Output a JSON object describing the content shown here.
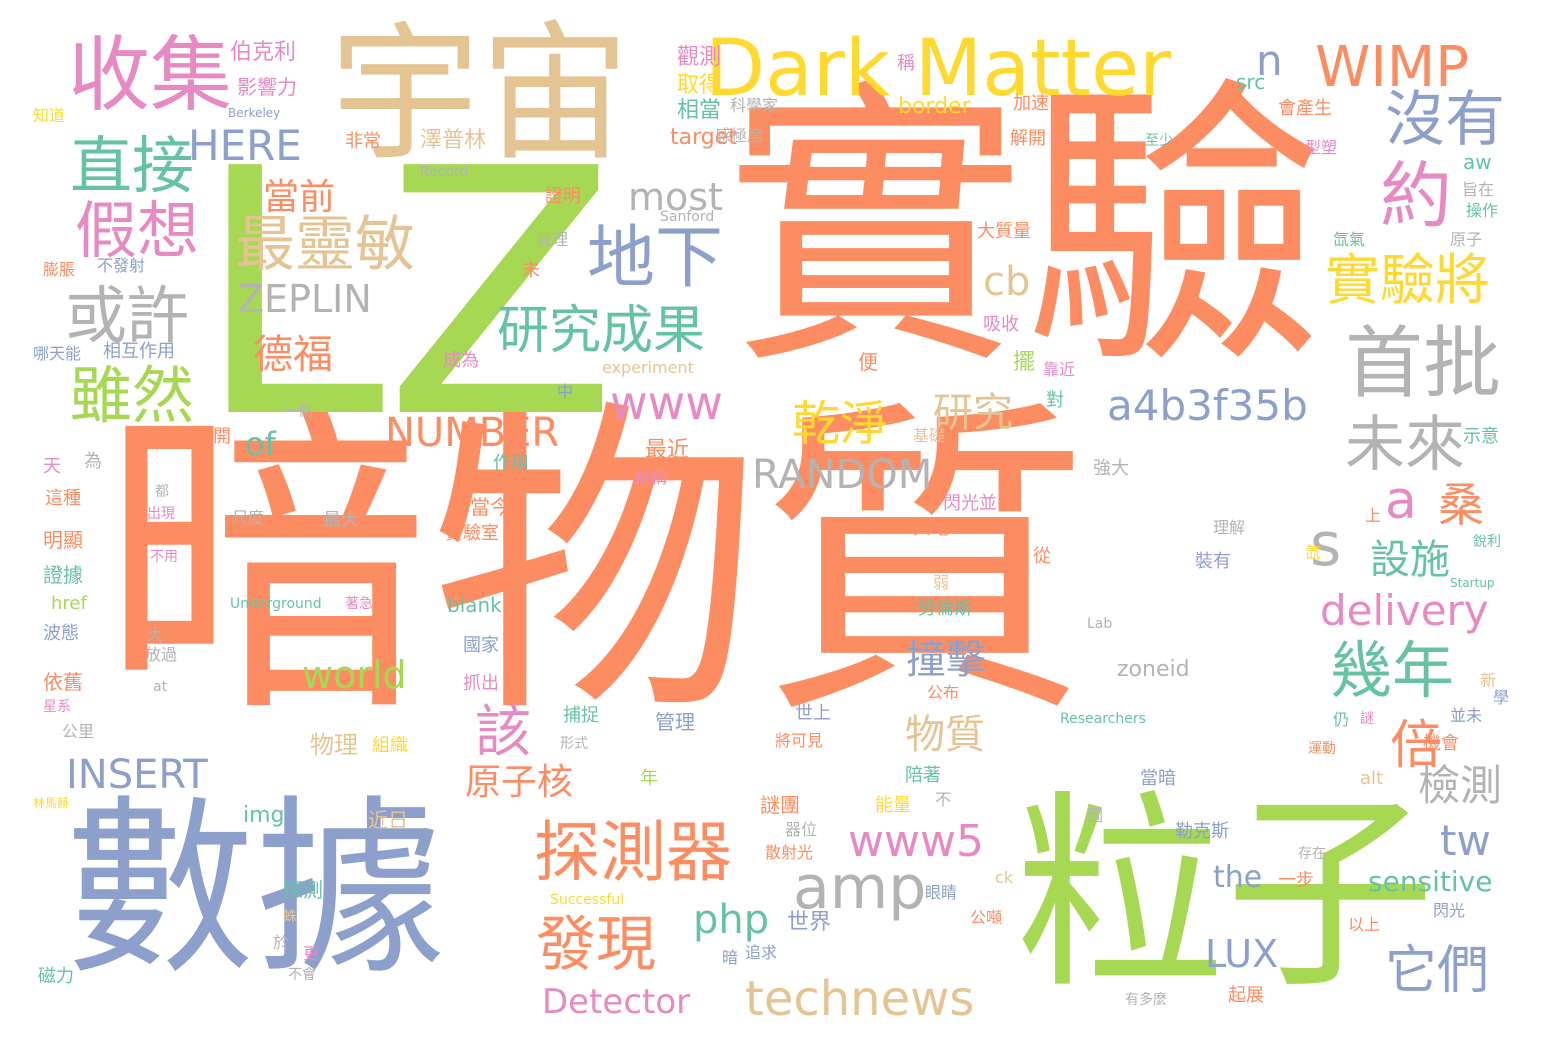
{
  "palette": {
    "orange": "#fc8d62",
    "blue": "#8da0cb",
    "green": "#a6d854",
    "tan": "#e5c494",
    "yellow": "#ffd92f",
    "teal": "#66c2a5",
    "pink": "#e78ac3",
    "gray": "#b3b3b3"
  },
  "words": [
    {
      "text": "暗物質",
      "color": "orange"
    },
    {
      "text": "實驗",
      "color": "orange"
    },
    {
      "text": "LZ",
      "color": "green"
    },
    {
      "text": "宇宙",
      "color": "tan"
    },
    {
      "text": "數據",
      "color": "blue"
    },
    {
      "text": "粒子",
      "color": "green"
    },
    {
      "text": "Dark Matter",
      "color": "yellow"
    },
    {
      "text": "收集",
      "color": "pink"
    },
    {
      "text": "WIMP",
      "color": "orange"
    },
    {
      "text": "直接",
      "color": "teal"
    },
    {
      "text": "假想",
      "color": "pink"
    },
    {
      "text": "最靈敏",
      "color": "tan"
    },
    {
      "text": "地下",
      "color": "blue"
    },
    {
      "text": "或許",
      "color": "gray"
    },
    {
      "text": "ZEPLIN",
      "color": "gray"
    },
    {
      "text": "研究成果",
      "color": "teal"
    },
    {
      "text": "雖然",
      "color": "green"
    },
    {
      "text": "德福",
      "color": "orange"
    },
    {
      "text": "當前",
      "color": "orange"
    },
    {
      "text": "HERE",
      "color": "blue"
    },
    {
      "text": "沒有",
      "color": "blue"
    },
    {
      "text": "約",
      "color": "pink"
    },
    {
      "text": "實驗將",
      "color": "yellow"
    },
    {
      "text": "首批",
      "color": "gray"
    },
    {
      "text": "未來",
      "color": "gray"
    },
    {
      "text": "a4b3f35b",
      "color": "blue"
    },
    {
      "text": "s",
      "color": "gray"
    },
    {
      "text": "a",
      "color": "pink"
    },
    {
      "text": "桑",
      "color": "orange"
    },
    {
      "text": "設施",
      "color": "teal"
    },
    {
      "text": "delivery",
      "color": "pink"
    },
    {
      "text": "幾年",
      "color": "teal"
    },
    {
      "text": "倍",
      "color": "orange"
    },
    {
      "text": "檢測",
      "color": "gray"
    },
    {
      "text": "tw",
      "color": "blue"
    },
    {
      "text": "sensitive",
      "color": "teal"
    },
    {
      "text": "LUX",
      "color": "blue"
    },
    {
      "text": "它們",
      "color": "blue"
    },
    {
      "text": "technews",
      "color": "tan"
    },
    {
      "text": "Detector",
      "color": "pink"
    },
    {
      "text": "php",
      "color": "teal"
    },
    {
      "text": "發現",
      "color": "orange"
    },
    {
      "text": "探測器",
      "color": "orange"
    },
    {
      "text": "amp",
      "color": "gray"
    },
    {
      "text": "www5",
      "color": "pink"
    },
    {
      "text": "乾淨",
      "color": "yellow"
    },
    {
      "text": "研究",
      "color": "tan"
    },
    {
      "text": "www",
      "color": "pink"
    },
    {
      "text": "RANDOM",
      "color": "gray"
    },
    {
      "text": "NUMBER",
      "color": "orange"
    },
    {
      "text": "cb",
      "color": "tan"
    },
    {
      "text": "most",
      "color": "gray"
    },
    {
      "text": "n",
      "color": "blue"
    },
    {
      "text": "of",
      "color": "teal"
    },
    {
      "text": "INSERT",
      "color": "blue"
    },
    {
      "text": "world",
      "color": "green"
    },
    {
      "text": "物理",
      "color": "tan"
    },
    {
      "text": "組織",
      "color": "yellow"
    },
    {
      "text": "該",
      "color": "pink"
    },
    {
      "text": "原子核",
      "color": "orange"
    },
    {
      "text": "物質",
      "color": "tan"
    },
    {
      "text": "撞擊",
      "color": "blue"
    },
    {
      "text": "zoneid",
      "color": "gray"
    },
    {
      "text": "the",
      "color": "blue"
    },
    {
      "text": "一步",
      "color": "orange"
    },
    {
      "text": "世界",
      "color": "blue"
    },
    {
      "text": "伯克利",
      "color": "pink"
    },
    {
      "text": "影響力",
      "color": "pink"
    },
    {
      "text": "Berkeley",
      "color": "blue"
    },
    {
      "text": "知道",
      "color": "yellow"
    },
    {
      "text": "觀測",
      "color": "pink"
    },
    {
      "text": "取得",
      "color": "yellow"
    },
    {
      "text": "相當",
      "color": "teal"
    },
    {
      "text": "科學家",
      "color": "gray"
    },
    {
      "text": "稱",
      "color": "pink"
    },
    {
      "text": "border",
      "color": "yellow"
    },
    {
      "text": "加速",
      "color": "orange"
    },
    {
      "text": "src",
      "color": "teal"
    },
    {
      "text": "會產生",
      "color": "orange"
    },
    {
      "text": "至少",
      "color": "teal"
    },
    {
      "text": "型塑",
      "color": "pink"
    },
    {
      "text": "target",
      "color": "orange"
    },
    {
      "text": "解開",
      "color": "orange"
    },
    {
      "text": "aw",
      "color": "teal"
    },
    {
      "text": "感極度",
      "color": "gray"
    },
    {
      "text": "旨在",
      "color": "gray"
    },
    {
      "text": "操作",
      "color": "teal"
    },
    {
      "text": "非常",
      "color": "orange"
    },
    {
      "text": "澤普林",
      "color": "tan"
    },
    {
      "text": "Record",
      "color": "gray"
    },
    {
      "text": "證明",
      "color": "orange"
    },
    {
      "text": "Sanford",
      "color": "gray"
    },
    {
      "text": "真理",
      "color": "gray"
    },
    {
      "text": "大質量",
      "color": "orange"
    },
    {
      "text": "氙氣",
      "color": "teal"
    },
    {
      "text": "原子",
      "color": "gray"
    },
    {
      "text": "膨脹",
      "color": "orange"
    },
    {
      "text": "不發射",
      "color": "blue"
    },
    {
      "text": "未",
      "color": "orange"
    },
    {
      "text": "吸收",
      "color": "pink"
    },
    {
      "text": "哪天能",
      "color": "blue"
    },
    {
      "text": "相互作用",
      "color": "blue"
    },
    {
      "text": "成為",
      "color": "pink"
    },
    {
      "text": "便",
      "color": "orange"
    },
    {
      "text": "擺",
      "color": "green"
    },
    {
      "text": "靠近",
      "color": "pink"
    },
    {
      "text": "experiment",
      "color": "tan"
    },
    {
      "text": "中",
      "color": "blue"
    },
    {
      "text": "一點",
      "color": "gray"
    },
    {
      "text": "對",
      "color": "teal"
    },
    {
      "text": "開",
      "color": "orange"
    },
    {
      "text": "為",
      "color": "gray"
    },
    {
      "text": "天",
      "color": "pink"
    },
    {
      "text": "最近",
      "color": "orange"
    },
    {
      "text": "基礎",
      "color": "tan"
    },
    {
      "text": "示意",
      "color": "teal"
    },
    {
      "text": "作用",
      "color": "teal"
    },
    {
      "text": "結構",
      "color": "pink"
    },
    {
      "text": "強大",
      "color": "gray"
    },
    {
      "text": "都",
      "color": "gray"
    },
    {
      "text": "這種",
      "color": "orange"
    },
    {
      "text": "出現",
      "color": "pink"
    },
    {
      "text": "最大",
      "color": "gray"
    },
    {
      "text": "當今",
      "color": "orange"
    },
    {
      "text": "尺度",
      "color": "gray"
    },
    {
      "text": "閃光並",
      "color": "pink"
    },
    {
      "text": "與電",
      "color": "orange"
    },
    {
      "text": "上",
      "color": "orange"
    },
    {
      "text": "明顯",
      "color": "orange"
    },
    {
      "text": "不用",
      "color": "pink"
    },
    {
      "text": "實驗室",
      "color": "orange"
    },
    {
      "text": "理解",
      "color": "gray"
    },
    {
      "text": "從",
      "color": "orange"
    },
    {
      "text": "氙",
      "color": "yellow"
    },
    {
      "text": "銳利",
      "color": "teal"
    },
    {
      "text": "證據",
      "color": "teal"
    },
    {
      "text": "裝有",
      "color": "blue"
    },
    {
      "text": "Startup",
      "color": "teal"
    },
    {
      "text": "href",
      "color": "green"
    },
    {
      "text": "Underground",
      "color": "teal"
    },
    {
      "text": "著急",
      "color": "pink"
    },
    {
      "text": "blank",
      "color": "teal"
    },
    {
      "text": "弱",
      "color": "tan"
    },
    {
      "text": "勞倫斯",
      "color": "teal"
    },
    {
      "text": "波態",
      "color": "blue"
    },
    {
      "text": "大",
      "color": "gray"
    },
    {
      "text": "放過",
      "color": "gray"
    },
    {
      "text": "Lab",
      "color": "gray"
    },
    {
      "text": "國家",
      "color": "blue"
    },
    {
      "text": "依舊",
      "color": "orange"
    },
    {
      "text": "抓出",
      "color": "pink"
    },
    {
      "text": "at",
      "color": "gray"
    },
    {
      "text": "公布",
      "color": "orange"
    },
    {
      "text": "新",
      "color": "tan"
    },
    {
      "text": "學",
      "color": "blue"
    },
    {
      "text": "星系",
      "color": "pink"
    },
    {
      "text": "捕捉",
      "color": "teal"
    },
    {
      "text": "管理",
      "color": "blue"
    },
    {
      "text": "世上",
      "color": "blue"
    },
    {
      "text": "Researchers",
      "color": "teal"
    },
    {
      "text": "並未",
      "color": "blue"
    },
    {
      "text": "公里",
      "color": "gray"
    },
    {
      "text": "形式",
      "color": "gray"
    },
    {
      "text": "將可見",
      "color": "orange"
    },
    {
      "text": "仍",
      "color": "teal"
    },
    {
      "text": "謎",
      "color": "pink"
    },
    {
      "text": "機會",
      "color": "orange"
    },
    {
      "text": "運動",
      "color": "orange"
    },
    {
      "text": "林馬赫",
      "color": "yellow"
    },
    {
      "text": "陪著",
      "color": "teal"
    },
    {
      "text": "年",
      "color": "green"
    },
    {
      "text": "不",
      "color": "gray"
    },
    {
      "text": "img",
      "color": "teal"
    },
    {
      "text": "能量",
      "color": "yellow"
    },
    {
      "text": "謎團",
      "color": "orange"
    },
    {
      "text": "當暗",
      "color": "blue"
    },
    {
      "text": "alt",
      "color": "tan"
    },
    {
      "text": "近日",
      "color": "tan"
    },
    {
      "text": "器位",
      "color": "gray"
    },
    {
      "text": "圖",
      "color": "gray"
    },
    {
      "text": "勒克斯",
      "color": "blue"
    },
    {
      "text": "散射光",
      "color": "orange"
    },
    {
      "text": "存在",
      "color": "gray"
    },
    {
      "text": "ck",
      "color": "tan"
    },
    {
      "text": "探測",
      "color": "teal"
    },
    {
      "text": "Successful",
      "color": "yellow"
    },
    {
      "text": "眼睛",
      "color": "blue"
    },
    {
      "text": "公噸",
      "color": "orange"
    },
    {
      "text": "閃光",
      "color": "blue"
    },
    {
      "text": "以上",
      "color": "orange"
    },
    {
      "text": "蛛",
      "color": "tan"
    },
    {
      "text": "於",
      "color": "gray"
    },
    {
      "text": "更",
      "color": "pink"
    },
    {
      "text": "不會",
      "color": "gray"
    },
    {
      "text": "暗",
      "color": "blue"
    },
    {
      "text": "追求",
      "color": "blue"
    },
    {
      "text": "磁力",
      "color": "teal"
    },
    {
      "text": "有多麼",
      "color": "gray"
    },
    {
      "text": "起展",
      "color": "orange"
    }
  ]
}
